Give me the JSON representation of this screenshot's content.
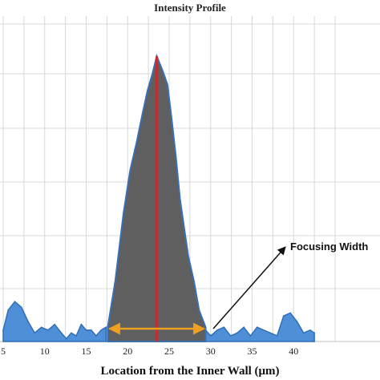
{
  "chart_data": {
    "type": "area",
    "title": "Intensity Profile",
    "xlabel": "Location from the Inner Wall (μm)",
    "ylabel": "",
    "xlim": [
      5,
      42.5
    ],
    "ylim": [
      0,
      100
    ],
    "x_ticks": [
      "5",
      "10",
      "15",
      "20",
      "25",
      "30",
      "35",
      "40"
    ],
    "grid": true,
    "colors": {
      "background_fill": "#4f8fd8",
      "background_line": "#2f6fb8",
      "peak_fill": "#5f5f5f",
      "peak_line": "#3a6fb0",
      "center_line": "#e02020",
      "width_arrow": "#f0a020",
      "grid": "#d8d8d8"
    },
    "background_series": {
      "x": [
        5,
        5.6,
        6.4,
        7.2,
        8.0,
        8.8,
        9.6,
        10.4,
        11.2,
        12.0,
        12.6,
        13.2,
        13.8,
        14.4,
        15.0,
        15.6,
        16.2,
        16.8,
        17.4,
        28.0,
        28.8,
        29.4,
        30.0,
        30.8,
        31.6,
        32.4,
        33.2,
        34.0,
        34.8,
        35.6,
        36.4,
        37.2,
        38.0,
        38.8,
        39.6,
        40.4,
        41.2,
        42.0,
        42.5
      ],
      "y": [
        4,
        11,
        14,
        12,
        7,
        3,
        5,
        4,
        6,
        3,
        1,
        3,
        2,
        6,
        4,
        4,
        2,
        4,
        5,
        8,
        6,
        4,
        2,
        4,
        5,
        2,
        3,
        5,
        2,
        5,
        4,
        3,
        2,
        9,
        10,
        7,
        3,
        4,
        3
      ]
    },
    "peak_series": {
      "x": [
        17.6,
        18.5,
        19.5,
        20.3,
        21.1,
        21.8,
        22.4,
        23.0,
        23.5,
        24.2,
        24.8,
        25.3,
        25.8,
        26.3,
        26.8,
        27.3,
        28.0,
        28.6,
        29.4
      ],
      "y": [
        5,
        21,
        45,
        60,
        70,
        80,
        88,
        94,
        100,
        95,
        90,
        78,
        65,
        50,
        40,
        30,
        21,
        11,
        5
      ]
    },
    "peak_x": 23.5,
    "focusing_width": [
      17.6,
      29.4
    ],
    "annotation": "Focusing Width"
  }
}
